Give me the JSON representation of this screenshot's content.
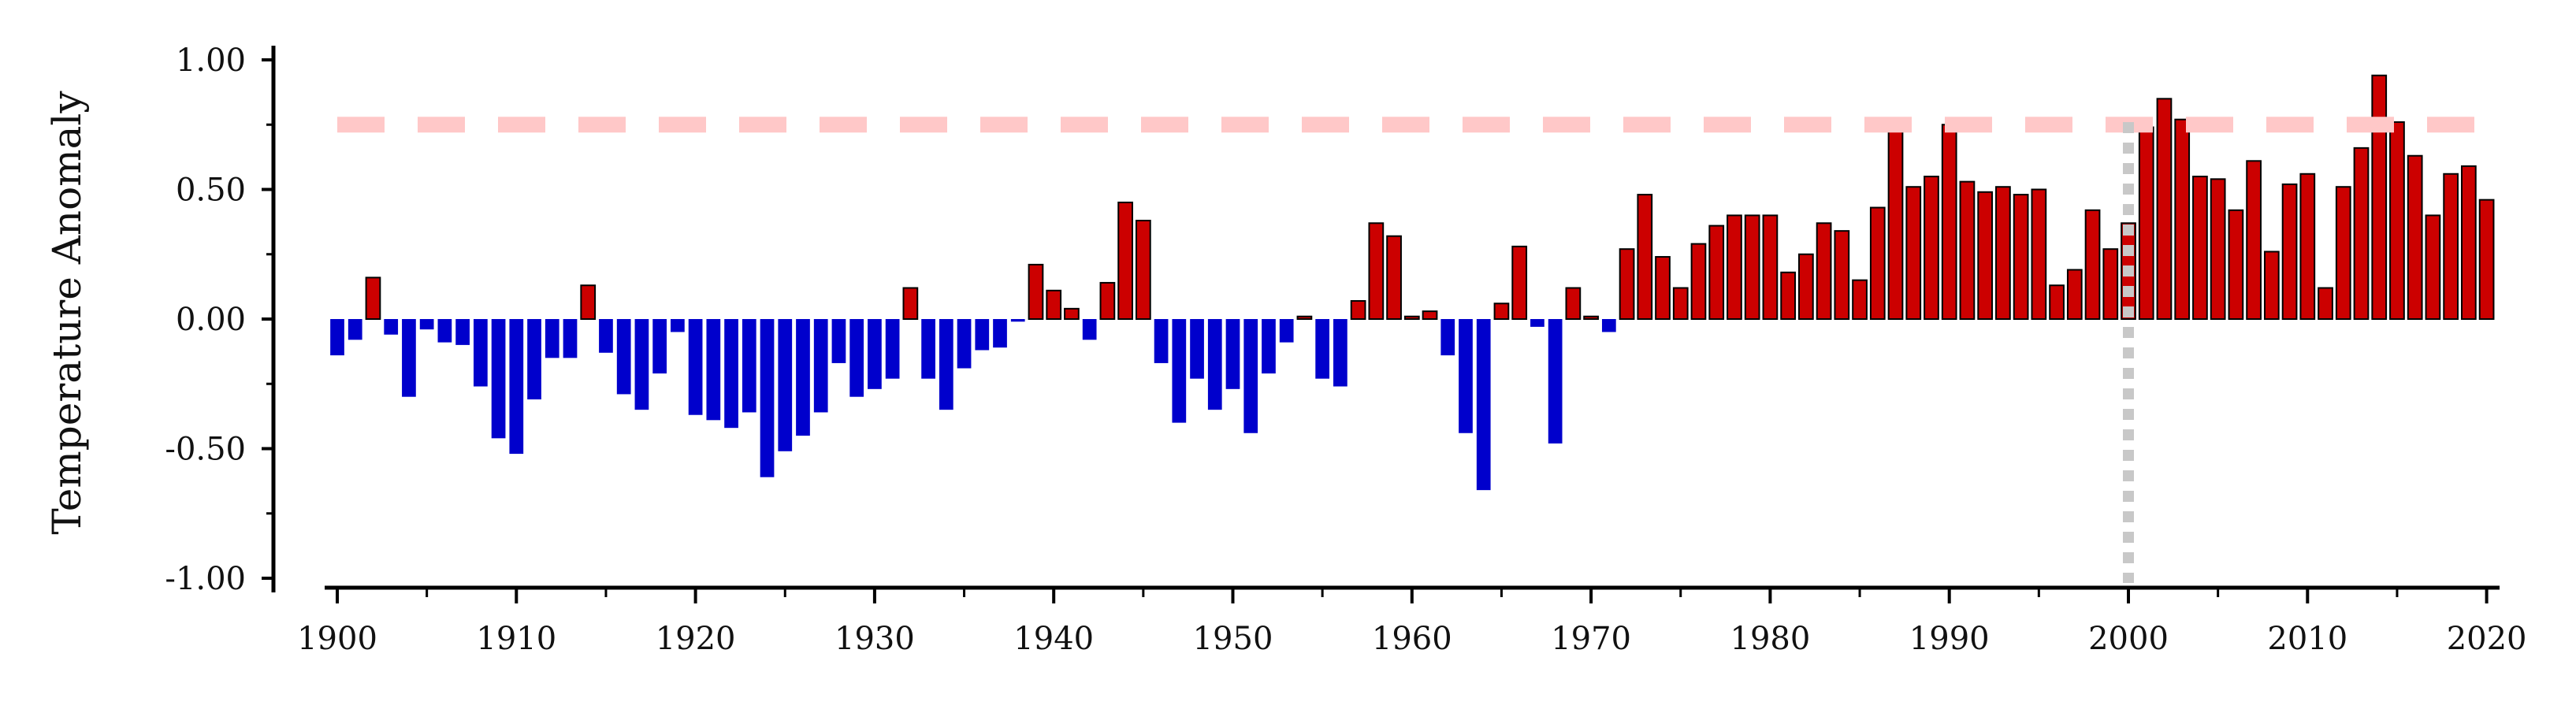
{
  "chart_data": {
    "type": "bar",
    "title": "",
    "xlabel": "",
    "ylabel": "Temperature Anomaly",
    "xlim": [
      1899.4,
      2020.6
    ],
    "ylim": [
      -1.0,
      1.0
    ],
    "x_ticks": [
      "1900",
      "1910",
      "1920",
      "1930",
      "1940",
      "1950",
      "1960",
      "1970",
      "1980",
      "1990",
      "2000",
      "2010",
      "2020"
    ],
    "y_ticks": [
      "1.00",
      "0.50",
      "0.00",
      "-0.50",
      "-1.00"
    ],
    "grid": false,
    "legend": "none",
    "colors": {
      "positive": "#cc0000",
      "negative": "#0000cc",
      "positive_edge": "#000000",
      "reference_line": "#ffc8c8",
      "vertical_marker": "#c8c8c8",
      "axis": "#000000"
    },
    "reference_line_value": 0.75,
    "vertical_marker_year": 2000,
    "years": [
      1900,
      1901,
      1902,
      1903,
      1904,
      1905,
      1906,
      1907,
      1908,
      1909,
      1910,
      1911,
      1912,
      1913,
      1914,
      1915,
      1916,
      1917,
      1918,
      1919,
      1920,
      1921,
      1922,
      1923,
      1924,
      1925,
      1926,
      1927,
      1928,
      1929,
      1930,
      1931,
      1932,
      1933,
      1934,
      1935,
      1936,
      1937,
      1938,
      1939,
      1940,
      1941,
      1942,
      1943,
      1944,
      1945,
      1946,
      1947,
      1948,
      1949,
      1950,
      1951,
      1952,
      1953,
      1954,
      1955,
      1956,
      1957,
      1958,
      1959,
      1960,
      1961,
      1962,
      1963,
      1964,
      1965,
      1966,
      1967,
      1968,
      1969,
      1970,
      1971,
      1972,
      1973,
      1974,
      1975,
      1976,
      1977,
      1978,
      1979,
      1980,
      1981,
      1982,
      1983,
      1984,
      1985,
      1986,
      1987,
      1988,
      1989,
      1990,
      1991,
      1992,
      1993,
      1994,
      1995,
      1996,
      1997,
      1998,
      1999,
      2000,
      2001,
      2002,
      2003,
      2004,
      2005,
      2006,
      2007,
      2008,
      2009,
      2010,
      2011,
      2012,
      2013,
      2014,
      2015,
      2016,
      2017,
      2018,
      2019,
      2020
    ],
    "values": [
      -0.14,
      -0.08,
      0.16,
      -0.06,
      -0.3,
      -0.04,
      -0.09,
      -0.1,
      -0.26,
      -0.46,
      -0.52,
      -0.31,
      -0.15,
      -0.15,
      0.13,
      -0.13,
      -0.29,
      -0.35,
      -0.21,
      -0.05,
      -0.37,
      -0.39,
      -0.42,
      -0.36,
      -0.61,
      -0.51,
      -0.45,
      -0.36,
      -0.17,
      -0.3,
      -0.27,
      -0.23,
      0.12,
      -0.23,
      -0.35,
      -0.19,
      -0.12,
      -0.11,
      -0.01,
      0.21,
      0.11,
      0.04,
      -0.08,
      0.14,
      0.45,
      0.38,
      -0.17,
      -0.4,
      -0.23,
      -0.35,
      -0.27,
      -0.44,
      -0.21,
      -0.09,
      0.01,
      -0.23,
      -0.26,
      0.07,
      0.37,
      0.32,
      0.01,
      0.03,
      -0.14,
      -0.44,
      -0.66,
      0.06,
      0.28,
      -0.03,
      -0.48,
      0.12,
      0.01,
      -0.05,
      0.27,
      0.48,
      0.24,
      0.12,
      0.29,
      0.36,
      0.4,
      0.4,
      0.4,
      0.18,
      0.25,
      0.37,
      0.34,
      0.15,
      0.43,
      0.73,
      0.51,
      0.55,
      0.75,
      0.53,
      0.49,
      0.51,
      0.48,
      0.5,
      0.13,
      0.19,
      0.42,
      0.27,
      0.37,
      0.74,
      0.85,
      0.77,
      0.55,
      0.54,
      0.42,
      0.61,
      0.26,
      0.52,
      0.56,
      0.12,
      0.51,
      0.66,
      0.94,
      0.76,
      0.63,
      0.4,
      0.56,
      0.59,
      0.46
    ]
  }
}
